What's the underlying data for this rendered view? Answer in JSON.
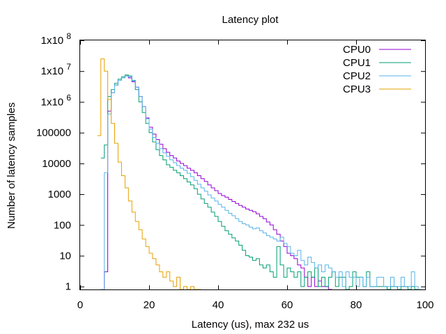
{
  "chart_data": {
    "type": "line",
    "style": "step",
    "title": "Latency plot",
    "xlabel": "Latency (us), max 232 us",
    "ylabel": "Number of latency samples",
    "yscale": "log",
    "xlim": [
      0,
      100
    ],
    "ylim": [
      0.8,
      100000000
    ],
    "grid": false,
    "legend_position": "top-right",
    "x_ticks": [
      0,
      20,
      40,
      60,
      80,
      100
    ],
    "x_tick_labels": [
      "0",
      "20",
      "40",
      "60",
      "80",
      "100"
    ],
    "y_ticks": [
      1,
      10,
      100,
      1000,
      10000,
      100000,
      1000000,
      10000000,
      100000000
    ],
    "y_tick_labels": [
      {
        "base": "1",
        "exp": ""
      },
      {
        "base": "10",
        "exp": ""
      },
      {
        "base": "100",
        "exp": ""
      },
      {
        "base": "1000",
        "exp": ""
      },
      {
        "base": "10000",
        "exp": ""
      },
      {
        "base": "100000",
        "exp": ""
      },
      {
        "base": "1x10",
        "exp": "6"
      },
      {
        "base": "1x10",
        "exp": "7"
      },
      {
        "base": "1x10",
        "exp": "8"
      }
    ],
    "series": [
      {
        "name": "CPU0",
        "color": "#9400d3",
        "x": [
          6,
          7,
          8,
          9,
          10,
          11,
          12,
          13,
          14,
          15,
          16,
          17,
          18,
          19,
          20,
          21,
          22,
          23,
          24,
          25,
          26,
          27,
          28,
          29,
          30,
          31,
          32,
          33,
          34,
          35,
          36,
          37,
          38,
          39,
          40,
          41,
          42,
          43,
          44,
          45,
          46,
          47,
          48,
          49,
          50,
          51,
          52,
          53,
          54,
          55,
          56,
          57,
          58,
          59,
          60,
          61,
          62,
          63,
          64,
          65,
          66,
          67,
          68,
          69,
          70,
          71,
          72
        ],
        "values": [
          0.8,
          3,
          500000,
          2000000,
          3500000,
          5000000,
          6000000,
          7000000,
          6000000,
          4500000,
          3000000,
          1500000,
          700000,
          300000,
          150000,
          90000,
          60000,
          42000,
          30000,
          23000,
          18000,
          15000,
          12000,
          10000,
          8500,
          7000,
          6000,
          5000,
          4000,
          3200,
          2600,
          2000,
          1600,
          1300,
          1050,
          900,
          800,
          680,
          580,
          500,
          430,
          380,
          330,
          300,
          270,
          230,
          190,
          160,
          125,
          100,
          70,
          50,
          30,
          20,
          12,
          10,
          8,
          5,
          4,
          2,
          1,
          2,
          1,
          1.5,
          1,
          1,
          0.8
        ]
      },
      {
        "name": "CPU1",
        "color": "#009e73",
        "x": [
          6,
          7,
          8,
          9,
          10,
          11,
          12,
          13,
          14,
          15,
          16,
          17,
          18,
          19,
          20,
          21,
          22,
          23,
          24,
          25,
          26,
          27,
          28,
          29,
          30,
          31,
          32,
          33,
          34,
          35,
          36,
          37,
          38,
          39,
          40,
          41,
          42,
          43,
          44,
          45,
          46,
          47,
          48,
          49,
          50,
          51,
          52,
          53,
          54,
          55,
          56,
          57,
          58,
          59,
          60,
          61,
          62,
          63,
          64,
          65,
          66,
          67,
          68,
          69,
          70,
          71,
          72,
          73,
          74,
          75,
          76,
          77,
          78,
          79,
          80,
          81,
          82,
          83,
          84,
          85,
          86,
          87,
          88,
          89,
          90,
          91,
          92,
          93,
          94,
          95,
          96,
          97
        ],
        "values": [
          15000,
          40000,
          1500000,
          2500000,
          4000000,
          5500000,
          6500000,
          7500000,
          7000000,
          5000000,
          2500000,
          1000000,
          450000,
          200000,
          100000,
          50000,
          28000,
          18000,
          13000,
          9000,
          7500,
          6000,
          5000,
          4000,
          3200,
          2500,
          2000,
          1500,
          1000,
          700,
          500,
          380,
          260,
          190,
          130,
          90,
          65,
          50,
          38,
          30,
          22,
          15,
          10,
          9,
          7,
          8,
          5,
          4,
          5,
          3,
          2,
          20,
          5,
          2,
          4,
          3,
          2,
          3,
          1,
          2,
          3,
          2,
          4,
          1,
          2,
          1,
          2,
          3,
          1,
          2,
          2,
          0.8,
          1,
          3,
          2,
          2,
          1,
          3,
          1,
          1,
          1,
          1,
          1,
          0.8,
          1,
          1,
          0.8,
          1,
          1,
          0.8,
          1,
          0.8
        ]
      },
      {
        "name": "CPU2",
        "color": "#56b4e9",
        "x": [
          6,
          7,
          8,
          9,
          10,
          11,
          12,
          13,
          14,
          15,
          16,
          17,
          18,
          19,
          20,
          21,
          22,
          23,
          24,
          25,
          26,
          27,
          28,
          29,
          30,
          31,
          32,
          33,
          34,
          35,
          36,
          37,
          38,
          39,
          40,
          41,
          42,
          43,
          44,
          45,
          46,
          47,
          48,
          49,
          50,
          51,
          52,
          53,
          54,
          55,
          56,
          57,
          58,
          59,
          60,
          61,
          62,
          63,
          64,
          65,
          66,
          67,
          68,
          69,
          70,
          71,
          72,
          73,
          74,
          75,
          76,
          77,
          78,
          79,
          80,
          81,
          82,
          83,
          84,
          85,
          86,
          87,
          88,
          89,
          90,
          91,
          92,
          93,
          94,
          95,
          96,
          97,
          98
        ],
        "values": [
          0.8,
          5000,
          400000,
          2000000,
          3500000,
          5000000,
          6000000,
          7000000,
          6500000,
          4800000,
          3000000,
          1500000,
          700000,
          280000,
          130000,
          70000,
          45000,
          30000,
          22000,
          17000,
          13000,
          10500,
          8500,
          7000,
          6000,
          4800,
          3700,
          2800,
          2100,
          1600,
          1250,
          950,
          750,
          600,
          470,
          380,
          300,
          240,
          200,
          160,
          130,
          110,
          100,
          85,
          75,
          80,
          65,
          55,
          45,
          40,
          35,
          30,
          40,
          25,
          20,
          12,
          10,
          15,
          7,
          5,
          9,
          6,
          4,
          5,
          3,
          5,
          4,
          3,
          2,
          3,
          1,
          3,
          2,
          2,
          1,
          2,
          1,
          2,
          1,
          1,
          2,
          2,
          1,
          1,
          2,
          1,
          1,
          2,
          1,
          1,
          3,
          1,
          0.8
        ]
      },
      {
        "name": "CPU3",
        "color": "#e69f00",
        "x": [
          5,
          6,
          7,
          8,
          9,
          10,
          11,
          12,
          13,
          14,
          15,
          16,
          17,
          18,
          19,
          20,
          21,
          22,
          23,
          24,
          25,
          26,
          27,
          28,
          29,
          30,
          31,
          32,
          33,
          34
        ],
        "values": [
          80000,
          25000000,
          10000000,
          1200000,
          200000,
          45000,
          11000,
          4000,
          1600,
          600,
          260,
          130,
          70,
          35,
          20,
          12,
          8,
          5,
          3,
          2,
          3,
          1.5,
          1,
          2,
          0.8,
          1,
          0.8,
          1,
          0.8,
          0.8
        ]
      }
    ]
  }
}
